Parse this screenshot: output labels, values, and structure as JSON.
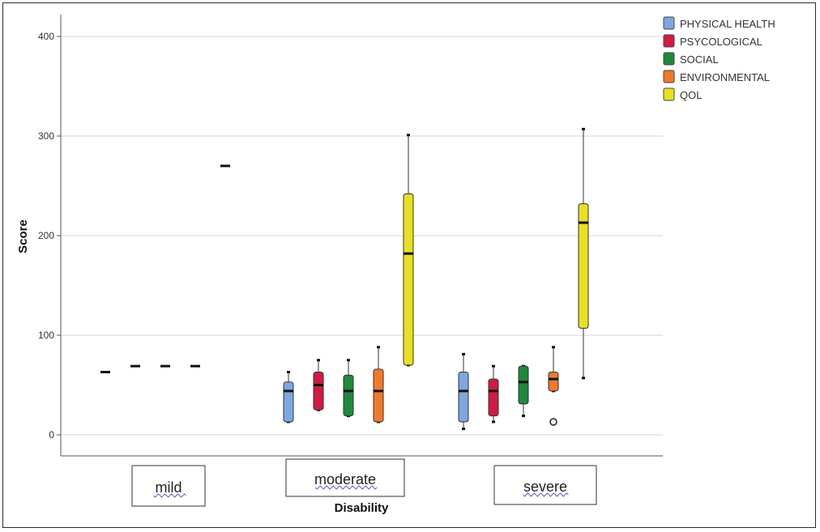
{
  "chart_data": {
    "type": "boxplot",
    "xlabel": "Disability",
    "ylabel": "Score",
    "ylim": [
      0,
      400
    ],
    "yticks": [
      0,
      100,
      200,
      300,
      400
    ],
    "grid": true,
    "legend_position": "top-right",
    "categories": [
      "mild",
      "moderate",
      "severe"
    ],
    "series": [
      {
        "name": "PHYSICAL HEALTH",
        "color": "#7ea6e0",
        "boxes": [
          {
            "category": "mild",
            "min": 63,
            "q1": 63,
            "median": 63,
            "q3": 63,
            "max": 63,
            "outliers": []
          },
          {
            "category": "moderate",
            "min": 13,
            "q1": 13,
            "median": 44,
            "q3": 53,
            "max": 63,
            "outliers": []
          },
          {
            "category": "severe",
            "min": 6,
            "q1": 13,
            "median": 44,
            "q3": 63,
            "max": 81,
            "outliers": []
          }
        ]
      },
      {
        "name": "PSYCOLOGICAL",
        "color": "#d11a44",
        "boxes": [
          {
            "category": "mild",
            "min": 69,
            "q1": 69,
            "median": 69,
            "q3": 69,
            "max": 69,
            "outliers": []
          },
          {
            "category": "moderate",
            "min": 25,
            "q1": 25,
            "median": 50,
            "q3": 63,
            "max": 75,
            "outliers": []
          },
          {
            "category": "severe",
            "min": 13,
            "q1": 19,
            "median": 44,
            "q3": 56,
            "max": 69,
            "outliers": []
          }
        ]
      },
      {
        "name": "SOCIAL",
        "color": "#1e8a3c",
        "boxes": [
          {
            "category": "mild",
            "min": 69,
            "q1": 69,
            "median": 69,
            "q3": 69,
            "max": 69,
            "outliers": []
          },
          {
            "category": "moderate",
            "min": 19,
            "q1": 19,
            "median": 44,
            "q3": 60,
            "max": 75,
            "outliers": []
          },
          {
            "category": "severe",
            "min": 19,
            "q1": 31,
            "median": 53,
            "q3": 69,
            "max": 69,
            "outliers": []
          }
        ]
      },
      {
        "name": "ENVIRONMENTAL",
        "color": "#f07a2a",
        "boxes": [
          {
            "category": "mild",
            "min": 69,
            "q1": 69,
            "median": 69,
            "q3": 69,
            "max": 69,
            "outliers": []
          },
          {
            "category": "moderate",
            "min": 13,
            "q1": 13,
            "median": 44,
            "q3": 66,
            "max": 88,
            "outliers": []
          },
          {
            "category": "severe",
            "min": 44,
            "q1": 44,
            "median": 56,
            "q3": 63,
            "max": 88,
            "outliers": [
              13
            ]
          }
        ]
      },
      {
        "name": "QOL",
        "color": "#e8e020",
        "boxes": [
          {
            "category": "mild",
            "min": 270,
            "q1": 270,
            "median": 270,
            "q3": 270,
            "max": 270,
            "outliers": []
          },
          {
            "category": "moderate",
            "min": 70,
            "q1": 70,
            "median": 182,
            "q3": 242,
            "max": 301,
            "outliers": []
          },
          {
            "category": "severe",
            "min": 57,
            "q1": 107,
            "median": 213,
            "q3": 232,
            "max": 307,
            "outliers": []
          }
        ]
      }
    ]
  }
}
